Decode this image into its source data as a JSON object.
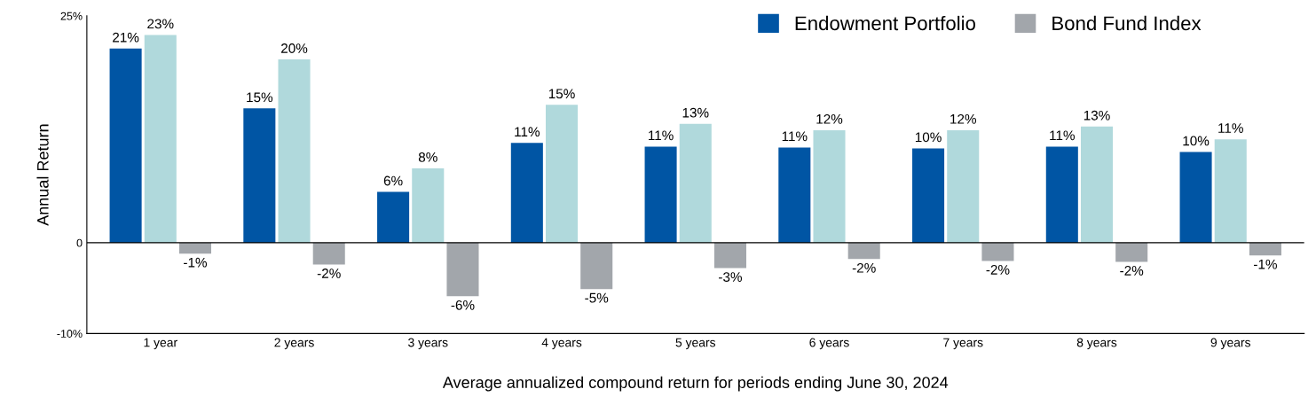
{
  "chart_data": {
    "type": "bar",
    "xlabel": "Average annualized compound return for periods ending June 30, 2024",
    "ylabel": "Annual Return",
    "categories": [
      "1 year",
      "2 years",
      "3 years",
      "4 years",
      "5 years",
      "6 years",
      "7 years",
      "8 years",
      "9 years"
    ],
    "series": [
      {
        "name": "Endowment Portfolio",
        "color": "#0055a4",
        "values": [
          21.4,
          14.8,
          5.6,
          11.0,
          10.6,
          10.5,
          10.4,
          10.6,
          10.0
        ],
        "value_labels": [
          "21%",
          "15%",
          "6%",
          "11%",
          "11%",
          "11%",
          "10%",
          "11%",
          "10%"
        ]
      },
      {
        "color": "#b0d9dc",
        "values": [
          22.9,
          20.2,
          8.2,
          15.2,
          13.1,
          12.4,
          12.4,
          12.8,
          11.4
        ],
        "value_labels": [
          "23%",
          "20%",
          "8%",
          "15%",
          "13%",
          "12%",
          "12%",
          "13%",
          "11%"
        ]
      },
      {
        "name": "Bond Fund Index",
        "color": "#a2a6ab",
        "values": [
          -1.2,
          -2.4,
          -5.9,
          -5.1,
          -2.8,
          -1.8,
          -2.0,
          -2.1,
          -1.4
        ],
        "value_labels": [
          "-1%",
          "-2%",
          "-6%",
          "-5%",
          "-3%",
          "-2%",
          "-2%",
          "-2%",
          "-1%"
        ]
      }
    ],
    "ylim": [
      -10,
      25
    ],
    "yticks": [
      {
        "value": -10,
        "label": "-10%"
      },
      0,
      {
        "value": 25,
        "label": "25%"
      }
    ],
    "ref_lines": [
      {
        "axis": "y",
        "value": 0,
        "color": "#000000"
      }
    ],
    "grid": false,
    "legend": "top right"
  }
}
